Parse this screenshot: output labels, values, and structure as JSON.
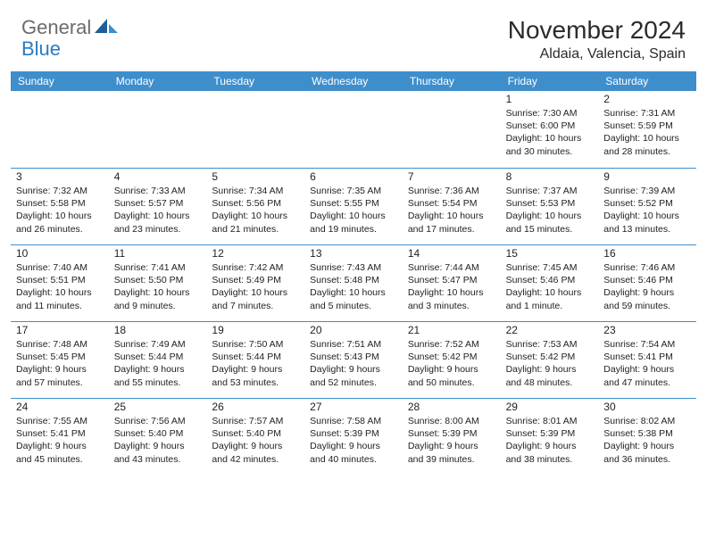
{
  "brand": {
    "general": "General",
    "blue": "Blue"
  },
  "title": "November 2024",
  "location": "Aldaia, Valencia, Spain",
  "colors": {
    "header_bg": "#3f8ecc",
    "header_text": "#ffffff",
    "divider": "#3f8ecc",
    "logo_gray": "#6b6b6b",
    "logo_blue": "#2b7bc0",
    "text": "#222222"
  },
  "typography": {
    "title_fontsize": 28,
    "location_fontsize": 16,
    "dayheader_fontsize": 12,
    "daynum_fontsize": 12,
    "info_fontsize": 10.5
  },
  "day_headers": [
    "Sunday",
    "Monday",
    "Tuesday",
    "Wednesday",
    "Thursday",
    "Friday",
    "Saturday"
  ],
  "weeks": [
    [
      {
        "empty": true
      },
      {
        "empty": true
      },
      {
        "empty": true
      },
      {
        "empty": true
      },
      {
        "empty": true
      },
      {
        "day": "1",
        "sunrise": "Sunrise: 7:30 AM",
        "sunset": "Sunset: 6:00 PM",
        "daylight1": "Daylight: 10 hours",
        "daylight2": "and 30 minutes."
      },
      {
        "day": "2",
        "sunrise": "Sunrise: 7:31 AM",
        "sunset": "Sunset: 5:59 PM",
        "daylight1": "Daylight: 10 hours",
        "daylight2": "and 28 minutes."
      }
    ],
    [
      {
        "day": "3",
        "sunrise": "Sunrise: 7:32 AM",
        "sunset": "Sunset: 5:58 PM",
        "daylight1": "Daylight: 10 hours",
        "daylight2": "and 26 minutes."
      },
      {
        "day": "4",
        "sunrise": "Sunrise: 7:33 AM",
        "sunset": "Sunset: 5:57 PM",
        "daylight1": "Daylight: 10 hours",
        "daylight2": "and 23 minutes."
      },
      {
        "day": "5",
        "sunrise": "Sunrise: 7:34 AM",
        "sunset": "Sunset: 5:56 PM",
        "daylight1": "Daylight: 10 hours",
        "daylight2": "and 21 minutes."
      },
      {
        "day": "6",
        "sunrise": "Sunrise: 7:35 AM",
        "sunset": "Sunset: 5:55 PM",
        "daylight1": "Daylight: 10 hours",
        "daylight2": "and 19 minutes."
      },
      {
        "day": "7",
        "sunrise": "Sunrise: 7:36 AM",
        "sunset": "Sunset: 5:54 PM",
        "daylight1": "Daylight: 10 hours",
        "daylight2": "and 17 minutes."
      },
      {
        "day": "8",
        "sunrise": "Sunrise: 7:37 AM",
        "sunset": "Sunset: 5:53 PM",
        "daylight1": "Daylight: 10 hours",
        "daylight2": "and 15 minutes."
      },
      {
        "day": "9",
        "sunrise": "Sunrise: 7:39 AM",
        "sunset": "Sunset: 5:52 PM",
        "daylight1": "Daylight: 10 hours",
        "daylight2": "and 13 minutes."
      }
    ],
    [
      {
        "day": "10",
        "sunrise": "Sunrise: 7:40 AM",
        "sunset": "Sunset: 5:51 PM",
        "daylight1": "Daylight: 10 hours",
        "daylight2": "and 11 minutes."
      },
      {
        "day": "11",
        "sunrise": "Sunrise: 7:41 AM",
        "sunset": "Sunset: 5:50 PM",
        "daylight1": "Daylight: 10 hours",
        "daylight2": "and 9 minutes."
      },
      {
        "day": "12",
        "sunrise": "Sunrise: 7:42 AM",
        "sunset": "Sunset: 5:49 PM",
        "daylight1": "Daylight: 10 hours",
        "daylight2": "and 7 minutes."
      },
      {
        "day": "13",
        "sunrise": "Sunrise: 7:43 AM",
        "sunset": "Sunset: 5:48 PM",
        "daylight1": "Daylight: 10 hours",
        "daylight2": "and 5 minutes."
      },
      {
        "day": "14",
        "sunrise": "Sunrise: 7:44 AM",
        "sunset": "Sunset: 5:47 PM",
        "daylight1": "Daylight: 10 hours",
        "daylight2": "and 3 minutes."
      },
      {
        "day": "15",
        "sunrise": "Sunrise: 7:45 AM",
        "sunset": "Sunset: 5:46 PM",
        "daylight1": "Daylight: 10 hours",
        "daylight2": "and 1 minute."
      },
      {
        "day": "16",
        "sunrise": "Sunrise: 7:46 AM",
        "sunset": "Sunset: 5:46 PM",
        "daylight1": "Daylight: 9 hours",
        "daylight2": "and 59 minutes."
      }
    ],
    [
      {
        "day": "17",
        "sunrise": "Sunrise: 7:48 AM",
        "sunset": "Sunset: 5:45 PM",
        "daylight1": "Daylight: 9 hours",
        "daylight2": "and 57 minutes."
      },
      {
        "day": "18",
        "sunrise": "Sunrise: 7:49 AM",
        "sunset": "Sunset: 5:44 PM",
        "daylight1": "Daylight: 9 hours",
        "daylight2": "and 55 minutes."
      },
      {
        "day": "19",
        "sunrise": "Sunrise: 7:50 AM",
        "sunset": "Sunset: 5:44 PM",
        "daylight1": "Daylight: 9 hours",
        "daylight2": "and 53 minutes."
      },
      {
        "day": "20",
        "sunrise": "Sunrise: 7:51 AM",
        "sunset": "Sunset: 5:43 PM",
        "daylight1": "Daylight: 9 hours",
        "daylight2": "and 52 minutes."
      },
      {
        "day": "21",
        "sunrise": "Sunrise: 7:52 AM",
        "sunset": "Sunset: 5:42 PM",
        "daylight1": "Daylight: 9 hours",
        "daylight2": "and 50 minutes."
      },
      {
        "day": "22",
        "sunrise": "Sunrise: 7:53 AM",
        "sunset": "Sunset: 5:42 PM",
        "daylight1": "Daylight: 9 hours",
        "daylight2": "and 48 minutes."
      },
      {
        "day": "23",
        "sunrise": "Sunrise: 7:54 AM",
        "sunset": "Sunset: 5:41 PM",
        "daylight1": "Daylight: 9 hours",
        "daylight2": "and 47 minutes."
      }
    ],
    [
      {
        "day": "24",
        "sunrise": "Sunrise: 7:55 AM",
        "sunset": "Sunset: 5:41 PM",
        "daylight1": "Daylight: 9 hours",
        "daylight2": "and 45 minutes."
      },
      {
        "day": "25",
        "sunrise": "Sunrise: 7:56 AM",
        "sunset": "Sunset: 5:40 PM",
        "daylight1": "Daylight: 9 hours",
        "daylight2": "and 43 minutes."
      },
      {
        "day": "26",
        "sunrise": "Sunrise: 7:57 AM",
        "sunset": "Sunset: 5:40 PM",
        "daylight1": "Daylight: 9 hours",
        "daylight2": "and 42 minutes."
      },
      {
        "day": "27",
        "sunrise": "Sunrise: 7:58 AM",
        "sunset": "Sunset: 5:39 PM",
        "daylight1": "Daylight: 9 hours",
        "daylight2": "and 40 minutes."
      },
      {
        "day": "28",
        "sunrise": "Sunrise: 8:00 AM",
        "sunset": "Sunset: 5:39 PM",
        "daylight1": "Daylight: 9 hours",
        "daylight2": "and 39 minutes."
      },
      {
        "day": "29",
        "sunrise": "Sunrise: 8:01 AM",
        "sunset": "Sunset: 5:39 PM",
        "daylight1": "Daylight: 9 hours",
        "daylight2": "and 38 minutes."
      },
      {
        "day": "30",
        "sunrise": "Sunrise: 8:02 AM",
        "sunset": "Sunset: 5:38 PM",
        "daylight1": "Daylight: 9 hours",
        "daylight2": "and 36 minutes."
      }
    ]
  ]
}
